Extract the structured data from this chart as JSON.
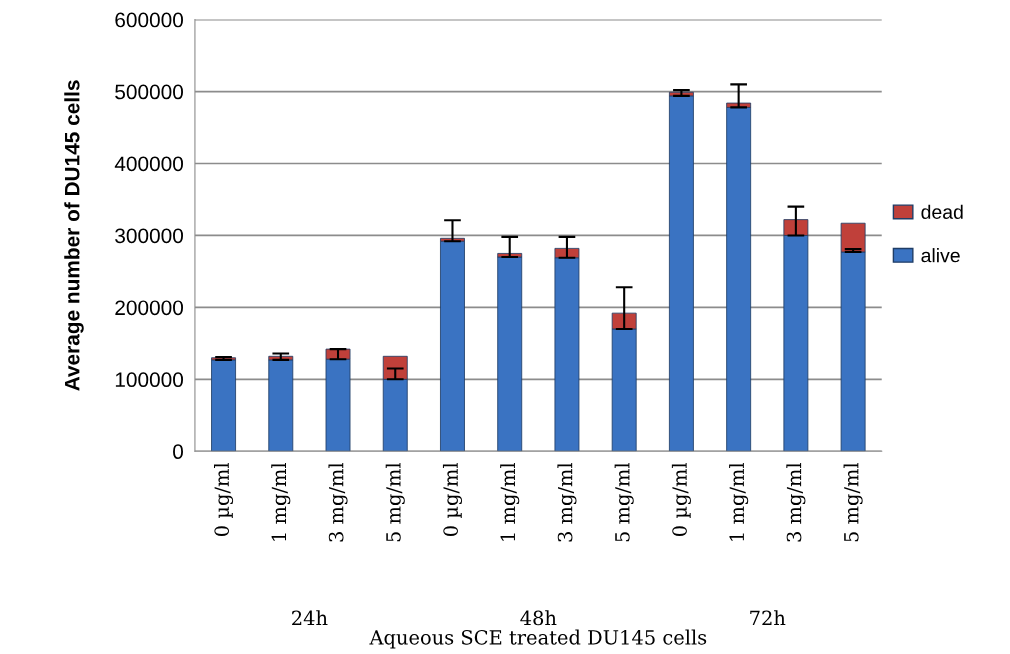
{
  "chart_data": {
    "type": "bar",
    "stacked": true,
    "ylabel": "Average number of DU145 cells",
    "xlabel": "Aqueous SCE treated DU145 cells",
    "categories": [
      "0 µg/ml",
      "1 mg/ml",
      "3 mg/ml",
      "5 mg/ml",
      "0 µg/ml",
      "1 mg/ml",
      "3 mg/ml",
      "5 mg/ml",
      "0 µg/ml",
      "1 mg/ml",
      "3 mg/ml",
      "5 mg/ml"
    ],
    "annotations": [
      "24h",
      "48h",
      "72h"
    ],
    "series": [
      {
        "name": "alive",
        "color": "#3a73c2",
        "values": [
          127000,
          127000,
          128000,
          100000,
          292000,
          270000,
          269000,
          170000,
          494000,
          478000,
          300000,
          277000
        ],
        "errors": [
          [
            127000,
            131000
          ],
          [
            127000,
            136000
          ],
          [
            128000,
            142000
          ],
          [
            100000,
            115000
          ],
          [
            292000,
            321000
          ],
          [
            270000,
            298000
          ],
          [
            269000,
            298000
          ],
          [
            170000,
            228000
          ],
          [
            494000,
            502000
          ],
          [
            478000,
            510000
          ],
          [
            300000,
            340000
          ],
          [
            277000,
            281000
          ]
        ]
      },
      {
        "name": "dead",
        "color": "#c0403a",
        "values": [
          3000,
          5000,
          14000,
          32000,
          4000,
          5000,
          13000,
          22000,
          5000,
          6000,
          22000,
          40000
        ]
      }
    ],
    "ylim": [
      0,
      600000
    ],
    "yticks": [
      0,
      100000,
      200000,
      300000,
      400000,
      500000,
      600000
    ],
    "grid": "y",
    "legend": "right"
  }
}
